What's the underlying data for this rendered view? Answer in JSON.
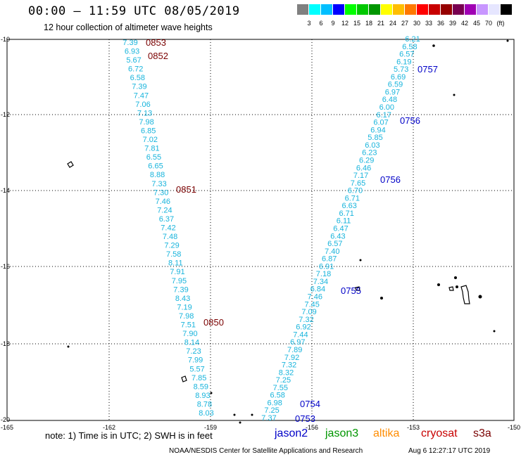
{
  "header": {
    "title": "00:00 – 11:59 UTC 08/05/2019",
    "subtitle": "12 hour collection of altimeter wave heights"
  },
  "scale": {
    "colors": [
      "#808080",
      "#00ffff",
      "#00bfff",
      "#0000ff",
      "#00ff00",
      "#00c800",
      "#009600",
      "#ffff00",
      "#ffbe00",
      "#ff7800",
      "#ff0000",
      "#c80000",
      "#960000",
      "#780050",
      "#a000b4",
      "#c896ff",
      "#e6e6ff",
      "#000000"
    ],
    "labels": [
      "3",
      "6",
      "9",
      "12",
      "15",
      "18",
      "21",
      "24",
      "27",
      "30",
      "33",
      "36",
      "39",
      "42",
      "45",
      "70",
      "(ft)"
    ]
  },
  "axes": {
    "lat_labels": [
      "-10",
      "-12",
      "-14",
      "-16",
      "-18",
      "-20"
    ],
    "lon_labels": [
      "-165",
      "-162",
      "-159",
      "-156",
      "-153",
      "-150"
    ]
  },
  "track_west": {
    "values": [
      "7.39",
      "6.93",
      "5.67",
      "6.72",
      "6.58",
      "7.39",
      "7.47",
      "7.06",
      "7.13",
      "7.98",
      "6.85",
      "7.02",
      "7.81",
      "6.55",
      "6.65",
      "8.88",
      "7.33",
      "7.30",
      "7.46",
      "7.24",
      "6.37",
      "7.42",
      "7.48",
      "7.29",
      "7.58",
      "8.11",
      "7.91",
      "7.95",
      "7.39",
      "8.43",
      "7.19",
      "7.98",
      "7.51",
      "7.90",
      "8.14",
      "7.23",
      "7.99",
      "5.57",
      "7.85",
      "8.59",
      "8.93",
      "8.78",
      "8.03"
    ],
    "times": [
      "0853",
      "0852",
      "0851",
      "0850"
    ]
  },
  "track_east": {
    "values": [
      "6.21",
      "6.58",
      "6.57",
      "6.19",
      "5.73",
      "6.69",
      "6.59",
      "6.97",
      "6.48",
      "6.00",
      "6.17",
      "6.07",
      "6.94",
      "5.85",
      "6.03",
      "6.23",
      "6.29",
      "6.46",
      "7.17",
      "7.65",
      "6.70",
      "6.71",
      "6.63",
      "6.71",
      "6.11",
      "6.47",
      "6.43",
      "6.57",
      "7.40",
      "6.87",
      "6.91",
      "7.18",
      "7.34",
      "6.84",
      "7.46",
      "7.45",
      "7.09",
      "7.32",
      "6.92",
      "7.44",
      "6.97",
      "7.89",
      "7.92",
      "7.32",
      "8.32",
      "7.25",
      "7.55",
      "6.58",
      "6.98",
      "7.25",
      "7.37"
    ],
    "times": [
      "0757",
      "0756",
      "0756",
      "0755",
      "0754",
      "0753"
    ]
  },
  "footer": {
    "note": "note: 1) Time is in UTC; 2) SWH is in feet",
    "satellites": [
      {
        "name": "jason2",
        "color": "#0000c8"
      },
      {
        "name": "jason3",
        "color": "#009600"
      },
      {
        "name": "altika",
        "color": "#ff8c00"
      },
      {
        "name": "cryosat",
        "color": "#c80000"
      },
      {
        "name": "s3a",
        "color": "#7a0000"
      }
    ],
    "credit": "NOAA/NESDIS Center for Satellite Applications and Research",
    "timestamp": "Aug 6 12:27:17 UTC 2019"
  }
}
